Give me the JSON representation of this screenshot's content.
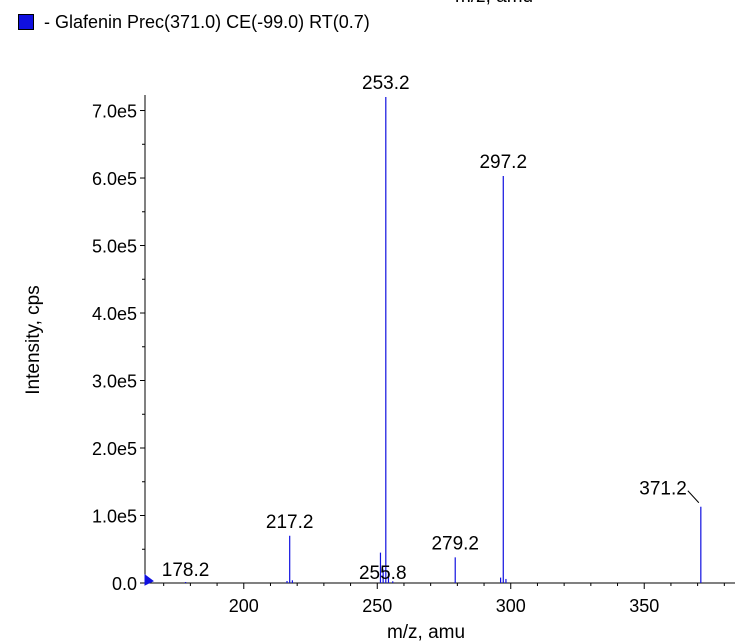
{
  "header_cut_text": "m/z, amu",
  "legend": {
    "label": "- Glafenin Prec(371.0) CE(-99.0) RT(0.7)",
    "color": "#1010e0"
  },
  "chart_data": {
    "type": "bar",
    "title": "",
    "xlabel": "m/z, amu",
    "ylabel": "Intensity, cps",
    "xlim": [
      163,
      384
    ],
    "ylim": [
      0,
      723000
    ],
    "x_ticks": [
      200,
      250,
      300,
      350
    ],
    "x_tick_labels": [
      "200",
      "250",
      "300",
      "350"
    ],
    "y_ticks": [
      0,
      100000,
      200000,
      300000,
      400000,
      500000,
      600000,
      700000
    ],
    "y_tick_labels": [
      "0.0",
      "1.0e5",
      "2.0e5",
      "3.0e5",
      "4.0e5",
      "5.0e5",
      "6.0e5",
      "7.0e5"
    ],
    "line_color": "#1010e0",
    "series": [
      {
        "values": [
          [
            178.2,
            1500
          ],
          [
            216.2,
            3000
          ],
          [
            217.2,
            70000
          ],
          [
            218.2,
            4000
          ],
          [
            251.2,
            45000
          ],
          [
            252.2,
            20000
          ],
          [
            253.2,
            720000
          ],
          [
            254.2,
            15000
          ],
          [
            255.8,
            2500
          ],
          [
            279.2,
            38000
          ],
          [
            296.2,
            8000
          ],
          [
            297.2,
            603000
          ],
          [
            298.2,
            6000
          ],
          [
            371.2,
            113000
          ]
        ]
      }
    ],
    "peak_labels": [
      {
        "x": 253.2,
        "y": 720000,
        "text": "253.2"
      },
      {
        "x": 297.2,
        "y": 603000,
        "text": "297.2"
      },
      {
        "x": 217.2,
        "y": 70000,
        "text": "217.2"
      },
      {
        "x": 279.2,
        "y": 38000,
        "text": "279.2"
      },
      {
        "x": 371.2,
        "y": 113000,
        "text": "371.2"
      },
      {
        "x": 255.8,
        "y": 2500,
        "text": "255.8"
      },
      {
        "x": 178.2,
        "y": 1500,
        "text": "178.2"
      }
    ]
  }
}
